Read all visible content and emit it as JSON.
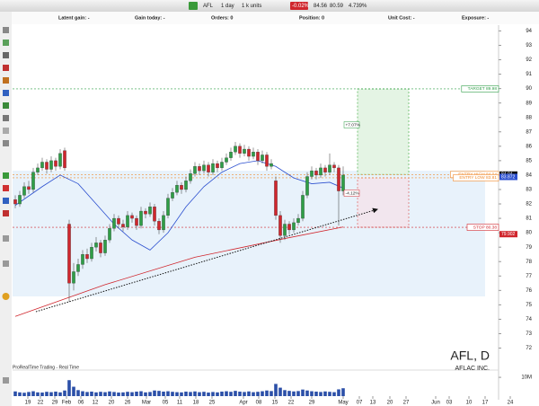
{
  "toolbar": {
    "symbol": "AFL",
    "period": "1 day",
    "units": "1 k units",
    "change": "-0.02%",
    "bid": "84.56",
    "ask": "80.59",
    "pct": "4.739%"
  },
  "header": {
    "latent_gain": "Latent gain: -",
    "gain_today": "Gain today: -",
    "orders": "Orders: 0",
    "position": "Position: 0",
    "unit_cost": "Unit Cost: -",
    "exposure": "Exposure: -"
  },
  "chart_data": {
    "type": "candlestick",
    "title": "AFL, D",
    "subtitle": "AFLAC INC.",
    "source": "ProRealTime Trading - Real Time",
    "open": [
      82.3,
      82.0,
      82.6,
      83.2,
      83.0,
      84.2,
      84.5,
      84.9,
      84.4,
      85.0,
      84.6,
      85.7,
      80.6,
      76.5,
      77.3,
      77.8,
      78.5,
      78.2,
      79.0,
      79.3,
      78.6,
      79.5,
      80.3,
      81.0,
      80.6,
      80.4,
      81.2,
      81.0,
      80.5,
      81.5,
      81.3,
      81.8,
      80.8,
      80.2,
      81.2,
      82.4,
      82.8,
      83.3,
      83.0,
      83.6,
      84.1,
      84.6,
      84.3,
      84.7,
      84.2,
      84.8,
      84.5,
      84.9,
      85.2,
      85.6,
      86.0,
      85.5,
      85.8,
      85.3,
      85.6,
      85.0,
      85.4,
      84.6,
      83.6,
      81.2,
      79.8,
      80.6,
      80.2,
      80.7,
      81.0,
      82.6,
      83.9,
      84.3,
      84.0,
      84.5,
      84.2,
      84.7,
      84.5,
      82.9
    ],
    "high": [
      82.6,
      82.9,
      83.5,
      83.6,
      84.5,
      84.8,
      85.2,
      85.1,
      85.3,
      85.2,
      85.8,
      85.9,
      80.9,
      77.9,
      78.2,
      78.8,
      78.9,
      79.3,
      79.7,
      79.5,
      79.8,
      80.6,
      81.3,
      81.2,
      80.9,
      81.5,
      81.4,
      81.2,
      81.8,
      81.7,
      82.1,
      82.0,
      81.0,
      81.5,
      82.7,
      83.1,
      83.6,
      83.5,
      83.9,
      84.4,
      84.9,
      84.8,
      85.0,
      84.9,
      85.1,
      85.0,
      85.2,
      85.5,
      85.9,
      86.3,
      86.2,
      86.1,
      86.0,
      85.9,
      85.8,
      85.7,
      85.6,
      85.1,
      83.9,
      81.5,
      80.9,
      80.8,
      81.0,
      81.3,
      82.9,
      84.2,
      84.6,
      84.5,
      84.8,
      84.7,
      85.5,
      84.9,
      84.7,
      84.6
    ],
    "low": [
      81.7,
      81.8,
      82.4,
      82.7,
      82.8,
      84.0,
      84.3,
      84.1,
      84.2,
      84.3,
      84.4,
      84.3,
      75.2,
      76.0,
      77.0,
      77.5,
      77.9,
      78.0,
      78.7,
      78.3,
      78.4,
      79.3,
      80.1,
      80.3,
      80.1,
      80.2,
      80.7,
      80.2,
      80.3,
      81.0,
      81.1,
      80.5,
      79.9,
      80.0,
      81.0,
      82.2,
      82.6,
      82.7,
      82.8,
      83.4,
      83.9,
      84.0,
      84.1,
      83.9,
      84.0,
      84.2,
      84.3,
      84.7,
      85.0,
      85.4,
      85.2,
      85.3,
      85.0,
      85.1,
      84.7,
      84.8,
      84.3,
      84.4,
      80.9,
      79.3,
      79.5,
      79.9,
      80.0,
      80.5,
      80.8,
      82.4,
      83.7,
      83.7,
      83.8,
      83.9,
      84.0,
      84.2,
      80.5,
      82.6
    ],
    "close": [
      82.0,
      82.6,
      83.2,
      83.0,
      84.2,
      84.5,
      84.9,
      84.4,
      85.0,
      84.6,
      85.5,
      84.5,
      76.5,
      77.3,
      77.8,
      78.5,
      78.2,
      79.0,
      79.3,
      78.6,
      79.5,
      80.3,
      81.0,
      80.6,
      80.4,
      81.2,
      81.0,
      80.5,
      81.5,
      81.3,
      81.8,
      80.8,
      80.2,
      81.2,
      82.4,
      82.8,
      83.3,
      83.0,
      83.6,
      84.1,
      84.6,
      84.3,
      84.7,
      84.2,
      84.8,
      84.5,
      84.9,
      85.2,
      85.6,
      86.0,
      85.5,
      85.8,
      85.3,
      85.6,
      85.0,
      85.4,
      84.6,
      84.8,
      81.2,
      79.8,
      80.6,
      80.2,
      80.7,
      81.0,
      82.6,
      83.9,
      84.3,
      84.0,
      84.5,
      84.2,
      84.7,
      84.5,
      82.9,
      84.0
    ],
    "xlim": [
      -0.6,
      107.6
    ],
    "xticks": [
      {
        "value": 2.8,
        "label": "19"
      },
      {
        "value": 5.6,
        "label": "22"
      },
      {
        "value": 8.8,
        "label": "29"
      },
      {
        "value": 11.4,
        "label": "Feb"
      },
      {
        "value": 14.6,
        "label": "06"
      },
      {
        "value": 17.8,
        "label": "12"
      },
      {
        "value": 21.4,
        "label": "20"
      },
      {
        "value": 25,
        "label": "26"
      },
      {
        "value": 29.2,
        "label": "Mar"
      },
      {
        "value": 33.4,
        "label": "05"
      },
      {
        "value": 36.6,
        "label": "11"
      },
      {
        "value": 40.2,
        "label": "18"
      },
      {
        "value": 43.8,
        "label": "25"
      },
      {
        "value": 50.8,
        "label": "Apr"
      },
      {
        "value": 54.2,
        "label": "08"
      },
      {
        "value": 57.8,
        "label": "15"
      },
      {
        "value": 61.4,
        "label": "22"
      },
      {
        "value": 66,
        "label": "29"
      },
      {
        "value": 73,
        "label": "May"
      },
      {
        "value": 76.6,
        "label": "07"
      },
      {
        "value": 79.6,
        "label": "13"
      },
      {
        "value": 83.4,
        "label": "20"
      },
      {
        "value": 87,
        "label": "27"
      },
      {
        "value": 93.6,
        "label": "Jun"
      },
      {
        "value": 96.6,
        "label": "03"
      },
      {
        "value": 101,
        "label": "10"
      },
      {
        "value": 104.6,
        "label": "17"
      },
      {
        "value": 110.2,
        "label": "24"
      }
    ],
    "ylim": [
      70.6,
      94.4
    ],
    "yticks": [
      72,
      73,
      74,
      75,
      76,
      77,
      78,
      79,
      80,
      81,
      82,
      83,
      84,
      85,
      86,
      87,
      88,
      89,
      90,
      91,
      92,
      93,
      94
    ],
    "colors": {
      "up": "#2e9e46",
      "down": "#d0262d"
    },
    "moving_averages": [
      {
        "color": "#2b4fcf",
        "x": [
          0,
          6,
          10,
          14,
          18,
          22,
          26,
          30,
          34,
          38,
          42,
          46,
          50,
          54,
          58,
          62,
          66,
          70,
          73
        ],
        "values": [
          81.9,
          83.2,
          84.0,
          83.4,
          82.0,
          80.6,
          79.5,
          78.8,
          80.0,
          81.8,
          83.2,
          84.2,
          84.8,
          85.0,
          84.6,
          83.8,
          83.4,
          83.5,
          83.1
        ]
      },
      {
        "color": "#d0262d",
        "x": [
          0,
          20,
          40,
          60,
          73
        ],
        "values": [
          74.2,
          76.4,
          78.3,
          79.6,
          80.4
        ]
      }
    ],
    "levels": [
      {
        "label": "TARGET 89.98",
        "value": 89.98,
        "color": "#2e9e46"
      },
      {
        "label": "ENTRY HIGH 84.04",
        "value": 84.04,
        "color": "#f08a2c"
      },
      {
        "label": "ENTRY LOW 83.81",
        "value": 83.81,
        "color": "#f08a2c"
      },
      {
        "label": "STOP 80.38",
        "value": 80.38,
        "color": "#d0262d"
      }
    ],
    "price_labels": [
      {
        "label": "84.04",
        "value": 84.04,
        "color": "#111111"
      },
      {
        "label": "83.872",
        "value": 83.872,
        "color": "#2b4fcf"
      },
      {
        "label": "79.902",
        "value": 79.902,
        "color": "#d0262d"
      }
    ],
    "annotations": [
      "+7.07%",
      "-4.12%"
    ],
    "volume": {
      "values": [
        2.5,
        2.0,
        1.8,
        2.2,
        2.6,
        2.0,
        1.9,
        2.3,
        2.1,
        2.4,
        2.0,
        3.0,
        8.5,
        5.0,
        3.2,
        2.6,
        2.2,
        2.4,
        2.0,
        2.3,
        2.1,
        2.5,
        2.2,
        1.9,
        2.0,
        2.3,
        2.1,
        2.4,
        2.6,
        2.0,
        2.2,
        3.0,
        2.8,
        2.4,
        2.6,
        2.3,
        2.1,
        2.0,
        2.4,
        2.2,
        2.5,
        2.1,
        2.3,
        1.9,
        2.2,
        2.0,
        2.4,
        2.6,
        2.3,
        2.8,
        2.4,
        2.2,
        2.5,
        2.1,
        2.3,
        2.6,
        3.0,
        2.7,
        6.5,
        4.5,
        3.2,
        2.8,
        2.5,
        2.7,
        3.5,
        3.0,
        2.6,
        2.4,
        2.2,
        2.5,
        2.3,
        2.1,
        3.6,
        4.2
      ],
      "color": "#2b4fa8",
      "ylim": [
        0,
        11
      ],
      "yticks": [
        {
          "value": 10,
          "label": "10M"
        }
      ]
    }
  }
}
